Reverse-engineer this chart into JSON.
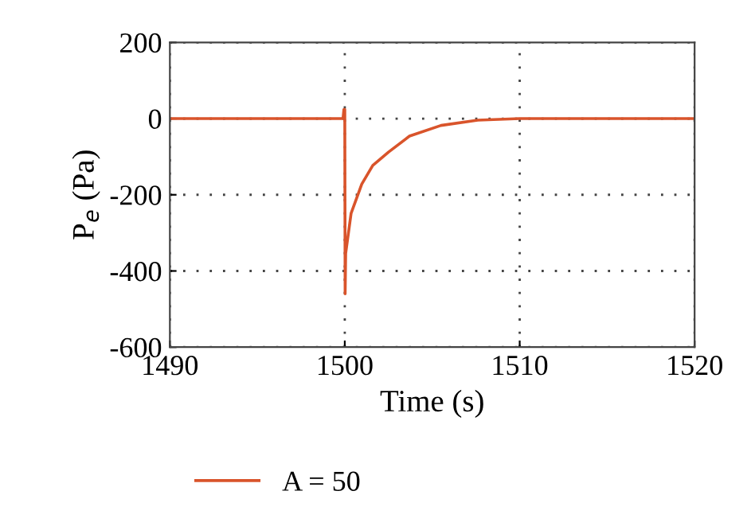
{
  "chart_data": {
    "type": "line",
    "xlabel": "Time (s)",
    "ylabel": "P$_{e}$ (Pa)",
    "xlim": [
      1490,
      1520
    ],
    "ylim": [
      -600,
      200
    ],
    "xticks": [
      1490,
      1500,
      1510,
      1520
    ],
    "yticks": [
      -600,
      -400,
      -200,
      0,
      200
    ],
    "grid": true,
    "legend": "bottom",
    "line_style": "solid",
    "marker": "none",
    "series": [
      {
        "name": "A = 50",
        "color": "#d9542b",
        "x": [
          1490,
          1499.9,
          1499.95,
          1500,
          1500.02,
          1500.05,
          1500.36,
          1500.97,
          1501.6,
          1502.5,
          1503.7,
          1505.5,
          1507.6,
          1510,
          1515,
          1520
        ],
        "values": [
          0,
          0,
          24,
          24,
          -460,
          -354,
          -249,
          -172,
          -123,
          -88,
          -46,
          -18,
          -4,
          0,
          0,
          0
        ]
      }
    ]
  }
}
